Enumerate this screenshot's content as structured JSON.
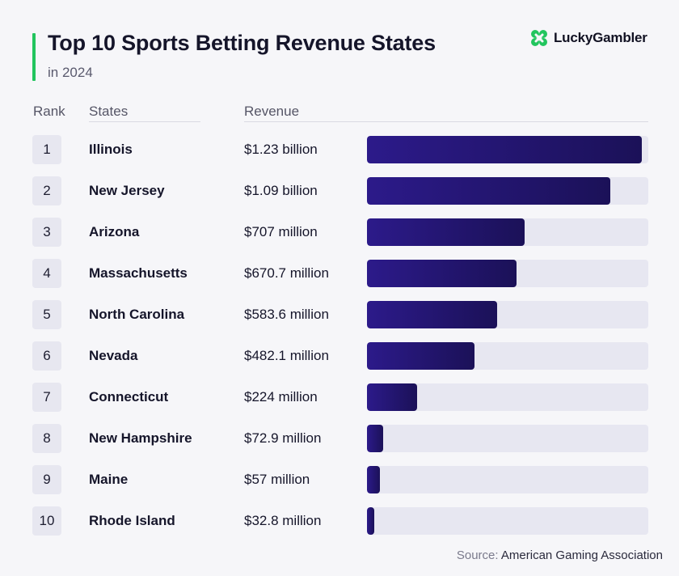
{
  "header": {
    "title": "Top 10 Sports Betting Revenue States",
    "subtitle": "in 2024"
  },
  "logo": {
    "text": "LuckyGambler",
    "color": "#22c55e",
    "icon": "clover-icon"
  },
  "columns": {
    "rank": "Rank",
    "states": "States",
    "revenue": "Revenue"
  },
  "chart_data": {
    "type": "bar",
    "orientation": "horizontal",
    "title": "Top 10 Sports Betting Revenue States",
    "subtitle": "in 2024",
    "unit": "USD",
    "xlim": [
      0,
      1.26
    ],
    "bar_color": "#2c1a8a",
    "track_color": "#e7e7f1",
    "rows": [
      {
        "rank": "1",
        "state": "Illinois",
        "label": "$1.23 billion",
        "value": 1.23
      },
      {
        "rank": "2",
        "state": "New Jersey",
        "label": "$1.09 billion",
        "value": 1.09
      },
      {
        "rank": "3",
        "state": "Arizona",
        "label": "$707 million",
        "value": 0.707
      },
      {
        "rank": "4",
        "state": "Massachusetts",
        "label": "$670.7 million",
        "value": 0.6707
      },
      {
        "rank": "5",
        "state": "North Carolina",
        "label": "$583.6 million",
        "value": 0.5836
      },
      {
        "rank": "6",
        "state": "Nevada",
        "label": "$482.1 million",
        "value": 0.4821
      },
      {
        "rank": "7",
        "state": "Connecticut",
        "label": "$224 million",
        "value": 0.224
      },
      {
        "rank": "8",
        "state": "New Hampshire",
        "label": "$72.9 million",
        "value": 0.0729
      },
      {
        "rank": "9",
        "state": "Maine",
        "label": "$57 million",
        "value": 0.057
      },
      {
        "rank": "10",
        "state": "Rhode Island",
        "label": "$32.8 million",
        "value": 0.0328
      }
    ]
  },
  "footer": {
    "source_label": "Source:",
    "source_name": "American Gaming Association"
  }
}
